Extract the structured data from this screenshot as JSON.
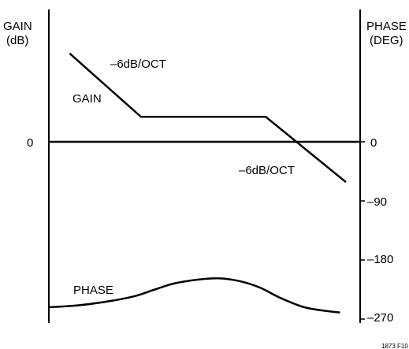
{
  "chart_data": {
    "type": "line",
    "left_axis": {
      "label_line1": "GAIN",
      "label_line2": "(dB)",
      "ticks": [
        {
          "label": "0",
          "value": 0
        }
      ]
    },
    "right_axis": {
      "label_line1": "PHASE",
      "label_line2": "(DEG)",
      "ticks": [
        {
          "label": "0",
          "value": 0
        },
        {
          "label": "–90",
          "value": -90
        },
        {
          "label": "–180",
          "value": -180
        },
        {
          "label": "–270",
          "value": -270
        }
      ]
    },
    "annotations": {
      "gain": "GAIN",
      "phase": "PHASE",
      "slope_low": "–6dB/OCT",
      "slope_high": "–6dB/OCT",
      "figure_id": "1873 F10"
    },
    "series": [
      {
        "name": "GAIN",
        "points": [
          [
            0.07,
            0.92
          ],
          [
            0.31,
            0.26
          ],
          [
            0.73,
            0.26
          ],
          [
            1.0,
            -0.42
          ]
        ]
      },
      {
        "name": "PHASE",
        "points": [
          [
            0.0,
            -252
          ],
          [
            0.1,
            -249
          ],
          [
            0.2,
            -243
          ],
          [
            0.29,
            -235
          ],
          [
            0.35,
            -226
          ],
          [
            0.42,
            -216
          ],
          [
            0.5,
            -210
          ],
          [
            0.57,
            -208
          ],
          [
            0.64,
            -212
          ],
          [
            0.71,
            -222
          ],
          [
            0.78,
            -238
          ],
          [
            0.86,
            -252
          ],
          [
            0.94,
            -258
          ],
          [
            0.98,
            -260
          ]
        ]
      }
    ],
    "gain_range": [
      -0.5,
      1.0
    ],
    "phase_range": [
      -290,
      0
    ]
  }
}
